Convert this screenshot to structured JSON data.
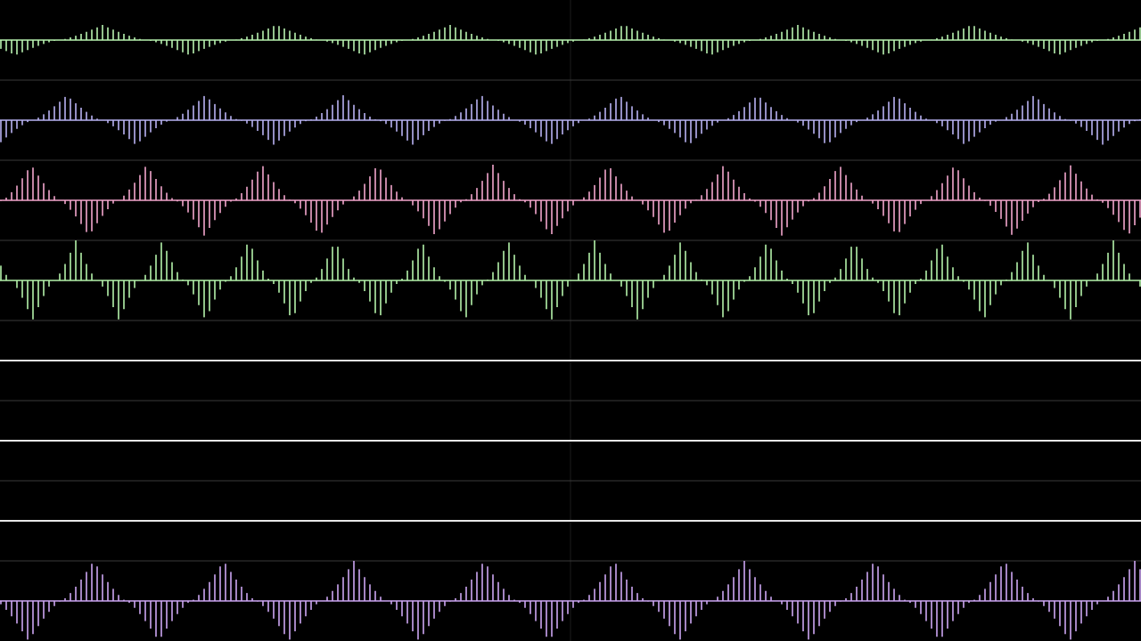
{
  "channels": [
    {
      "color": "#b8f2b0"
    },
    {
      "color": "#b8b2f2"
    },
    {
      "color": "#f2a6cc"
    },
    {
      "color": "#b4f2aa"
    },
    {
      "color": "#e8e8e8"
    },
    {
      "color": "#e8e8e8"
    },
    {
      "color": "#e8e8e8"
    },
    {
      "color": "#cca6f2"
    }
  ]
}
